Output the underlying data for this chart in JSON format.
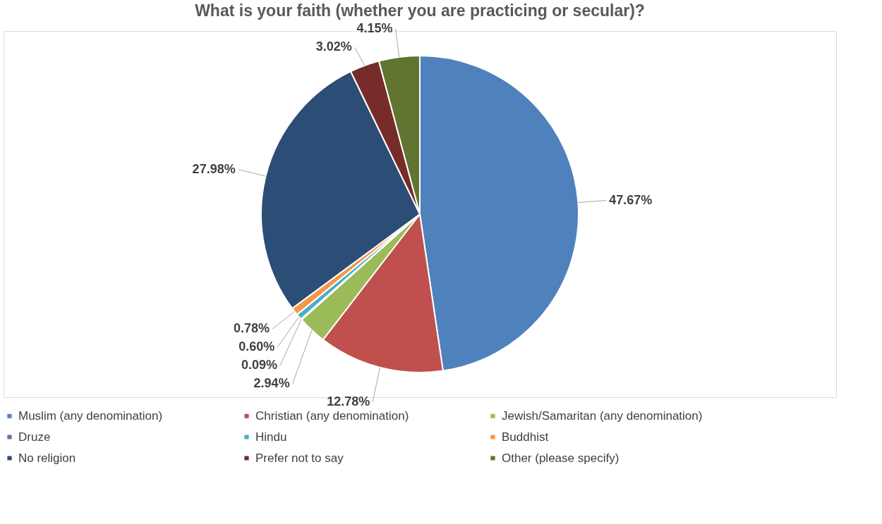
{
  "chart_data": {
    "type": "pie",
    "title": "What is your faith (whether you are practicing or secular)?",
    "categories": [
      "Muslim (any denomination)",
      "Christian (any denomination)",
      "Jewish/Samaritan (any denomination)",
      "Druze",
      "Hindu",
      "Buddhist",
      "No religion",
      "Prefer not to say",
      "Other (please specify)"
    ],
    "values": [
      47.67,
      12.78,
      2.94,
      0.09,
      0.6,
      0.78,
      27.98,
      3.02,
      4.15
    ],
    "colors": [
      "#4f81bd",
      "#c0504d",
      "#9bbb59",
      "#8064a2",
      "#4bacc6",
      "#f79646",
      "#2c4d75",
      "#772c2a",
      "#5f7530"
    ],
    "value_labels": [
      "47.67%",
      "12.78%",
      "2.94%",
      "0.09%",
      "0.60%",
      "0.78%",
      "27.98%",
      "3.02%",
      "4.15%"
    ],
    "legend": "bottom"
  }
}
